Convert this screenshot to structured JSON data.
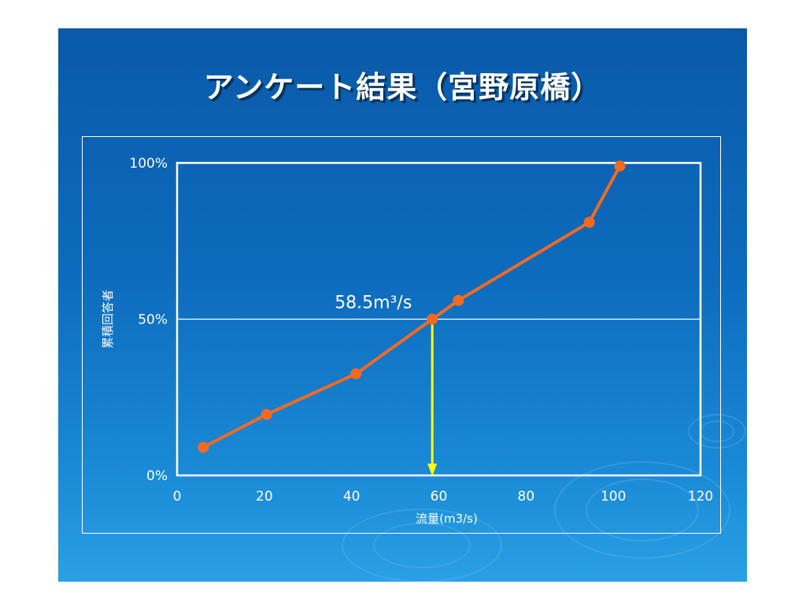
{
  "title": "アンケート結果（宮野原橋）",
  "colors": {
    "background": "#0d6bbd",
    "series": "#f26a22",
    "marker": "#f26a22",
    "annotation_arrow": "#ffff00",
    "axes": "#ffffff"
  },
  "chart_data": {
    "type": "line",
    "xlabel": "流量(m3/s)",
    "ylabel": "累積回答者",
    "xlim": [
      0,
      120
    ],
    "ylim": [
      0,
      100
    ],
    "x_ticks": [
      "0",
      "20",
      "40",
      "60",
      "80",
      "100",
      "120"
    ],
    "y_ticks": [
      "0%",
      "50%",
      "100%"
    ],
    "gridlines_y": [
      50
    ],
    "series": [
      {
        "x": [
          6,
          20.5,
          41,
          58.5,
          64.5,
          94.5,
          101.5
        ],
        "y": [
          9,
          19.5,
          32.5,
          50,
          56,
          81,
          99
        ]
      }
    ],
    "annotation": {
      "label": "58.5m³/s",
      "x": 58.5,
      "y": 50
    }
  }
}
